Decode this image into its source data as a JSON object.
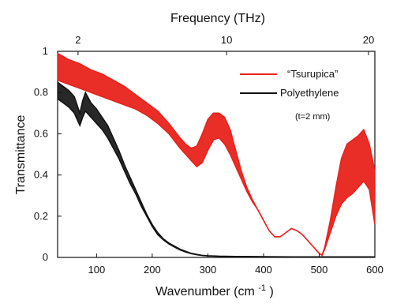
{
  "chart_data": {
    "type": "line",
    "title": "",
    "xlabel": "Wavenumber (cm",
    "xlabel_superscript": "-1",
    "xlabel_suffix": ")",
    "ylabel": "Transmittance",
    "top_axis_label": "Frequency (THz)",
    "xlim": [
      30,
      600
    ],
    "ylim": [
      0,
      1
    ],
    "x_ticks": [
      100,
      200,
      300,
      400,
      500,
      600
    ],
    "y_ticks": [
      0,
      0.2,
      0.4,
      0.6,
      0.8,
      1
    ],
    "y_tick_labels": [
      "0",
      "0.2",
      "0.4",
      "0.6",
      "0.8",
      "1"
    ],
    "top_ticks": [
      {
        "label": "2",
        "wavenumber": 66.7
      },
      {
        "label": "10",
        "wavenumber": 333.6
      },
      {
        "label": "20",
        "wavenumber": 667.1
      }
    ],
    "grid": false,
    "legend_position": "top-right",
    "annotations": [
      "(t=2 mm)"
    ],
    "series": [
      {
        "name": "“Tsurupica”",
        "color": "#e8221b",
        "x": [
          30,
          50,
          70,
          90,
          110,
          130,
          150,
          170,
          190,
          210,
          230,
          250,
          260,
          270,
          280,
          290,
          300,
          310,
          320,
          330,
          340,
          350,
          360,
          370,
          380,
          390,
          400,
          410,
          420,
          430,
          440,
          450,
          460,
          470,
          480,
          490,
          500,
          505,
          510,
          520,
          530,
          540,
          550,
          560,
          570,
          580,
          590,
          600
        ],
        "y_upper": [
          0.99,
          0.96,
          0.94,
          0.91,
          0.89,
          0.86,
          0.83,
          0.79,
          0.75,
          0.71,
          0.65,
          0.58,
          0.55,
          0.53,
          0.54,
          0.6,
          0.67,
          0.7,
          0.7,
          0.68,
          0.62,
          0.52,
          0.42,
          0.34,
          0.28,
          0.23,
          0.18,
          0.13,
          0.1,
          0.1,
          0.12,
          0.14,
          0.13,
          0.11,
          0.08,
          0.05,
          0.02,
          0.01,
          0.05,
          0.18,
          0.34,
          0.48,
          0.55,
          0.57,
          0.59,
          0.62,
          0.55,
          0.42
        ],
        "y_lower": [
          0.86,
          0.84,
          0.82,
          0.8,
          0.78,
          0.76,
          0.74,
          0.72,
          0.69,
          0.65,
          0.6,
          0.53,
          0.5,
          0.47,
          0.44,
          0.46,
          0.52,
          0.57,
          0.58,
          0.55,
          0.5,
          0.44,
          0.38,
          0.32,
          0.27,
          0.23,
          0.18,
          0.13,
          0.1,
          0.1,
          0.12,
          0.14,
          0.13,
          0.11,
          0.08,
          0.05,
          0.02,
          0.01,
          0.04,
          0.12,
          0.2,
          0.26,
          0.29,
          0.31,
          0.34,
          0.37,
          0.33,
          0.16
        ]
      },
      {
        "name": "Polyethylene",
        "color": "#111111",
        "x": [
          30,
          40,
          50,
          60,
          65,
          70,
          75,
          80,
          90,
          100,
          110,
          120,
          130,
          140,
          150,
          160,
          170,
          180,
          190,
          200,
          210,
          220,
          230,
          240,
          250,
          260,
          270,
          280,
          290,
          300,
          320,
          350,
          400,
          450,
          500,
          550,
          600
        ],
        "y_upper": [
          0.85,
          0.83,
          0.81,
          0.78,
          0.74,
          0.7,
          0.76,
          0.8,
          0.75,
          0.72,
          0.68,
          0.64,
          0.58,
          0.52,
          0.45,
          0.39,
          0.33,
          0.27,
          0.21,
          0.16,
          0.12,
          0.09,
          0.07,
          0.055,
          0.04,
          0.03,
          0.02,
          0.015,
          0.01,
          0.008,
          0.006,
          0.005,
          0.004,
          0.003,
          0.003,
          0.003,
          0.003
        ],
        "y_lower": [
          0.77,
          0.75,
          0.73,
          0.7,
          0.67,
          0.64,
          0.68,
          0.71,
          0.68,
          0.65,
          0.62,
          0.58,
          0.53,
          0.48,
          0.42,
          0.36,
          0.31,
          0.25,
          0.2,
          0.15,
          0.11,
          0.085,
          0.065,
          0.05,
          0.036,
          0.026,
          0.018,
          0.013,
          0.009,
          0.007,
          0.005,
          0.004,
          0.003,
          0.002,
          0.002,
          0.002,
          0.002
        ]
      }
    ]
  }
}
